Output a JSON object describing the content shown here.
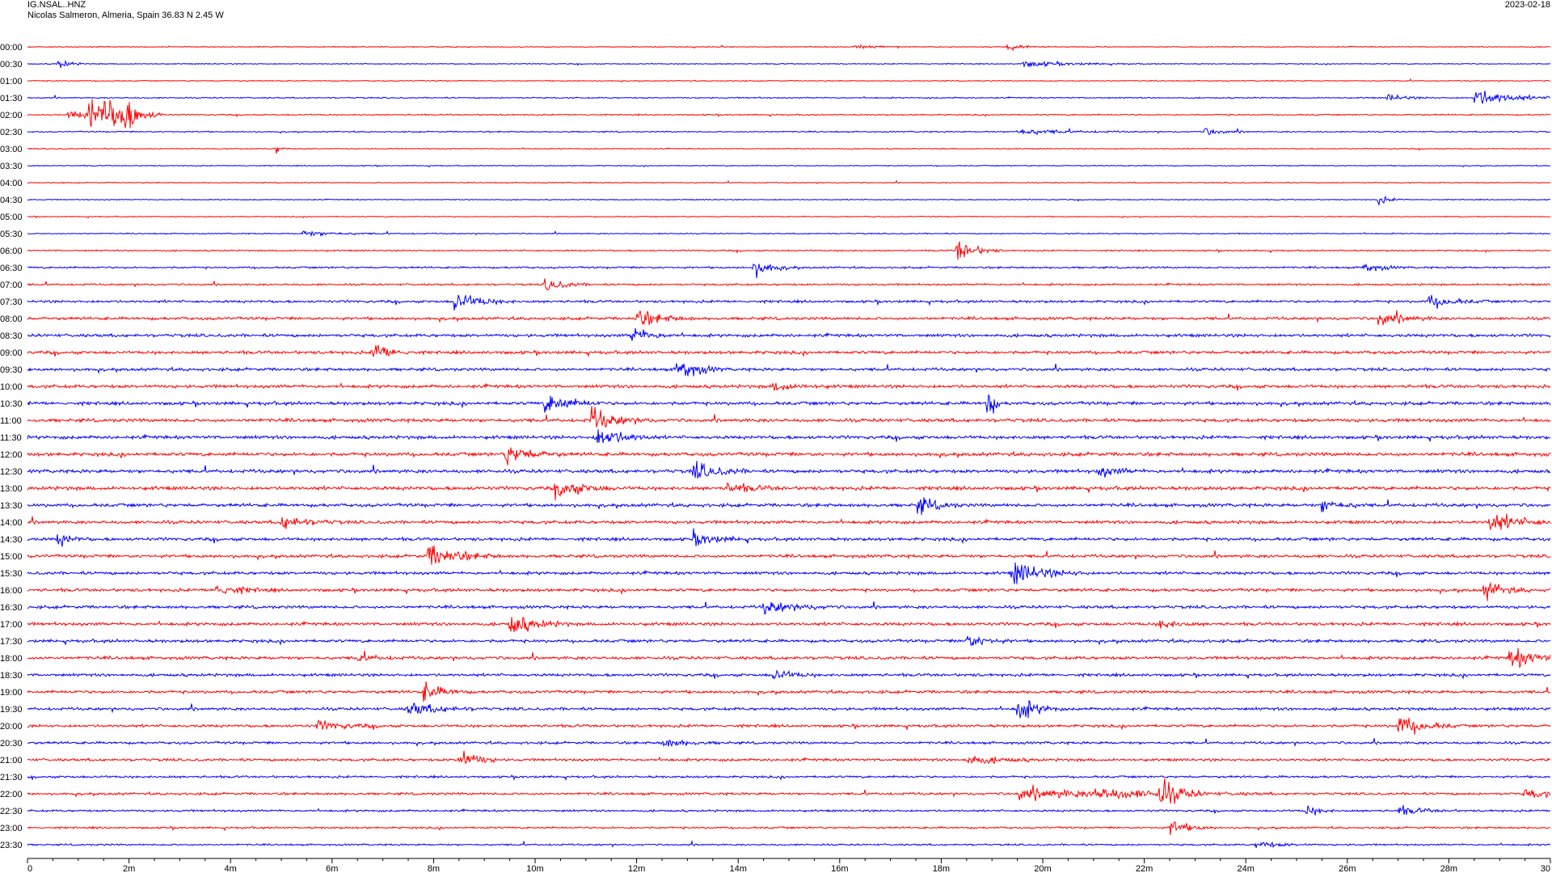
{
  "header": {
    "station": "IG.NSAL..HNZ",
    "location": "Nicolas Salmeron, Almeria, Spain  36.83 N 2.45 W",
    "date": "2023-02-18"
  },
  "colors": {
    "trace_a": "#ff0000",
    "trace_b": "#0000ff",
    "axis": "#000000"
  },
  "chart_data": {
    "type": "line",
    "title": "",
    "xlabel": "",
    "ylabel": "",
    "x_unit": "minutes",
    "xlim": [
      0,
      30
    ],
    "x_ticks": [
      "0",
      "2m",
      "4m",
      "6m",
      "8m",
      "10m",
      "12m",
      "14m",
      "16m",
      "18m",
      "20m",
      "22m",
      "24m",
      "26m",
      "28m",
      "30"
    ],
    "grid": false,
    "row_labels": [
      "00:00",
      "00:30",
      "01:00",
      "01:30",
      "02:00",
      "02:30",
      "03:00",
      "03:30",
      "04:00",
      "04:30",
      "05:00",
      "05:30",
      "06:00",
      "06:30",
      "07:00",
      "07:30",
      "08:00",
      "08:30",
      "09:00",
      "09:30",
      "10:00",
      "10:30",
      "11:00",
      "11:30",
      "12:00",
      "12:30",
      "13:00",
      "13:30",
      "14:00",
      "14:30",
      "15:00",
      "15:30",
      "16:00",
      "16:30",
      "17:00",
      "17:30",
      "18:00",
      "18:30",
      "19:00",
      "19:30",
      "20:00",
      "20:30",
      "21:00",
      "21:30",
      "22:00",
      "22:30",
      "23:00",
      "23:30"
    ],
    "row_colors": [
      "red",
      "blue"
    ],
    "noise_level": [
      0.6,
      0.6,
      0.6,
      0.8,
      0.8,
      0.8,
      0.6,
      0.6,
      0.6,
      0.6,
      0.6,
      0.7,
      0.9,
      1.2,
      1.2,
      1.6,
      1.8,
      1.9,
      1.9,
      1.9,
      2.0,
      2.1,
      2.1,
      2.1,
      2.2,
      2.2,
      2.2,
      2.1,
      2.0,
      2.0,
      1.9,
      1.9,
      1.9,
      1.9,
      1.9,
      1.9,
      1.9,
      1.8,
      1.8,
      1.8,
      1.7,
      1.6,
      1.6,
      1.4,
      1.5,
      1.3,
      1.2,
      1.1
    ],
    "events": [
      {
        "row": 0,
        "t": 16.3,
        "amp": 3,
        "dur": 0.4
      },
      {
        "row": 0,
        "t": 19.3,
        "amp": 5,
        "dur": 0.3
      },
      {
        "row": 1,
        "t": 0.6,
        "amp": 7,
        "dur": 0.2
      },
      {
        "row": 1,
        "t": 19.6,
        "amp": 4,
        "dur": 0.8
      },
      {
        "row": 3,
        "t": 28.5,
        "amp": 12,
        "dur": 0.6
      },
      {
        "row": 3,
        "t": 26.8,
        "amp": 5,
        "dur": 0.3
      },
      {
        "row": 4,
        "t": 1.2,
        "amp": 28,
        "dur": 0.25
      },
      {
        "row": 4,
        "t": 1.5,
        "amp": 24,
        "dur": 0.25
      },
      {
        "row": 4,
        "t": 1.8,
        "amp": 30,
        "dur": 0.3
      },
      {
        "row": 4,
        "t": 0.8,
        "amp": 5,
        "dur": 0.6
      },
      {
        "row": 5,
        "t": 19.5,
        "amp": 4,
        "dur": 0.8
      },
      {
        "row": 5,
        "t": 23.2,
        "amp": 5,
        "dur": 0.3
      },
      {
        "row": 6,
        "t": 4.9,
        "amp": 7,
        "dur": 0.1
      },
      {
        "row": 9,
        "t": 26.6,
        "amp": 6,
        "dur": 0.2
      },
      {
        "row": 11,
        "t": 5.4,
        "amp": 4,
        "dur": 0.6
      },
      {
        "row": 12,
        "t": 18.3,
        "amp": 18,
        "dur": 0.3
      },
      {
        "row": 13,
        "t": 14.3,
        "amp": 12,
        "dur": 0.3
      },
      {
        "row": 13,
        "t": 26.3,
        "amp": 7,
        "dur": 0.3
      },
      {
        "row": 14,
        "t": 10.2,
        "amp": 10,
        "dur": 0.3
      },
      {
        "row": 15,
        "t": 8.4,
        "amp": 14,
        "dur": 0.4
      },
      {
        "row": 15,
        "t": 27.6,
        "amp": 8,
        "dur": 0.4
      },
      {
        "row": 16,
        "t": 12.0,
        "amp": 12,
        "dur": 0.4
      },
      {
        "row": 16,
        "t": 26.6,
        "amp": 10,
        "dur": 0.4
      },
      {
        "row": 17,
        "t": 11.9,
        "amp": 12,
        "dur": 0.3
      },
      {
        "row": 18,
        "t": 6.8,
        "amp": 14,
        "dur": 0.3
      },
      {
        "row": 19,
        "t": 12.8,
        "amp": 18,
        "dur": 0.3
      },
      {
        "row": 20,
        "t": 14.7,
        "amp": 6,
        "dur": 0.4
      },
      {
        "row": 21,
        "t": 10.2,
        "amp": 14,
        "dur": 0.4
      },
      {
        "row": 21,
        "t": 18.9,
        "amp": 34,
        "dur": 0.1
      },
      {
        "row": 22,
        "t": 11.1,
        "amp": 16,
        "dur": 0.4
      },
      {
        "row": 23,
        "t": 11.2,
        "amp": 16,
        "dur": 0.4
      },
      {
        "row": 24,
        "t": 9.4,
        "amp": 14,
        "dur": 0.4
      },
      {
        "row": 25,
        "t": 13.1,
        "amp": 13,
        "dur": 0.4
      },
      {
        "row": 25,
        "t": 21.1,
        "amp": 8,
        "dur": 0.3
      },
      {
        "row": 26,
        "t": 10.4,
        "amp": 15,
        "dur": 0.4
      },
      {
        "row": 26,
        "t": 13.8,
        "amp": 7,
        "dur": 0.4
      },
      {
        "row": 27,
        "t": 17.5,
        "amp": 14,
        "dur": 0.3
      },
      {
        "row": 27,
        "t": 25.5,
        "amp": 10,
        "dur": 0.3
      },
      {
        "row": 28,
        "t": 28.8,
        "amp": 14,
        "dur": 0.5
      },
      {
        "row": 28,
        "t": 5.0,
        "amp": 9,
        "dur": 0.4
      },
      {
        "row": 29,
        "t": 0.6,
        "amp": 10,
        "dur": 0.2
      },
      {
        "row": 29,
        "t": 13.1,
        "amp": 9,
        "dur": 0.4
      },
      {
        "row": 30,
        "t": 7.9,
        "amp": 16,
        "dur": 0.5
      },
      {
        "row": 31,
        "t": 19.4,
        "amp": 16,
        "dur": 0.5
      },
      {
        "row": 32,
        "t": 3.7,
        "amp": 9,
        "dur": 0.4
      },
      {
        "row": 32,
        "t": 28.7,
        "amp": 14,
        "dur": 0.3
      },
      {
        "row": 33,
        "t": 14.5,
        "amp": 9,
        "dur": 0.5
      },
      {
        "row": 34,
        "t": 9.5,
        "amp": 15,
        "dur": 0.4
      },
      {
        "row": 34,
        "t": 22.3,
        "amp": 6,
        "dur": 0.3
      },
      {
        "row": 35,
        "t": 18.5,
        "amp": 10,
        "dur": 0.3
      },
      {
        "row": 36,
        "t": 29.2,
        "amp": 16,
        "dur": 0.4
      },
      {
        "row": 36,
        "t": 6.5,
        "amp": 5,
        "dur": 0.3
      },
      {
        "row": 37,
        "t": 14.7,
        "amp": 8,
        "dur": 0.3
      },
      {
        "row": 38,
        "t": 7.8,
        "amp": 14,
        "dur": 0.3
      },
      {
        "row": 39,
        "t": 19.5,
        "amp": 18,
        "dur": 0.3
      },
      {
        "row": 39,
        "t": 7.5,
        "amp": 9,
        "dur": 0.5
      },
      {
        "row": 40,
        "t": 27.0,
        "amp": 15,
        "dur": 0.4
      },
      {
        "row": 40,
        "t": 5.7,
        "amp": 6,
        "dur": 0.5
      },
      {
        "row": 41,
        "t": 12.5,
        "amp": 6,
        "dur": 0.4
      },
      {
        "row": 42,
        "t": 8.5,
        "amp": 15,
        "dur": 0.3
      },
      {
        "row": 42,
        "t": 18.5,
        "amp": 7,
        "dur": 0.5
      },
      {
        "row": 44,
        "t": 22.3,
        "amp": 20,
        "dur": 0.3
      },
      {
        "row": 44,
        "t": 19.5,
        "amp": 8,
        "dur": 1.2
      },
      {
        "row": 44,
        "t": 21.0,
        "amp": 6,
        "dur": 1.2
      },
      {
        "row": 44,
        "t": 29.5,
        "amp": 7,
        "dur": 0.4
      },
      {
        "row": 45,
        "t": 25.2,
        "amp": 8,
        "dur": 0.2
      },
      {
        "row": 45,
        "t": 27.0,
        "amp": 6,
        "dur": 0.4
      },
      {
        "row": 46,
        "t": 22.5,
        "amp": 12,
        "dur": 0.3
      },
      {
        "row": 47,
        "t": 24.2,
        "amp": 5,
        "dur": 0.4
      }
    ]
  }
}
